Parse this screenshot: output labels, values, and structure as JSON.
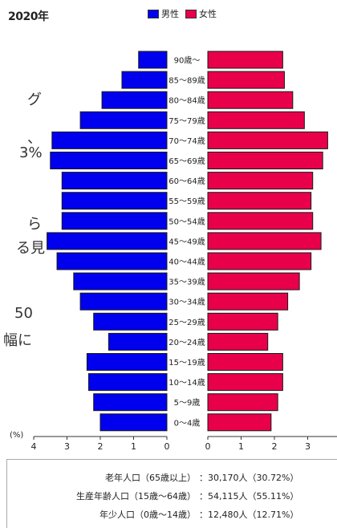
{
  "header": {
    "year": "2020年",
    "legend": [
      {
        "label": "男性",
        "color": "#0000ee"
      },
      {
        "label": "女性",
        "color": "#e8004a"
      }
    ]
  },
  "background_text": [
    {
      "text": "グ"
    },
    {
      "text": "、"
    },
    {
      "text": "3%"
    },
    {
      "text": "ら"
    },
    {
      "text": "る見"
    },
    {
      "text": "50"
    },
    {
      "text": "幅に"
    }
  ],
  "chart_data": {
    "type": "bar",
    "subtype": "population-pyramid",
    "categories": [
      "90歳～",
      "85～89歳",
      "80～84歳",
      "75～79歳",
      "70～74歳",
      "65～69歳",
      "60～64歳",
      "55～59歳",
      "50～54歳",
      "45～49歳",
      "40～44歳",
      "35～39歳",
      "30～34歳",
      "25～29歳",
      "20～24歳",
      "15～19歳",
      "10～14歳",
      "5～9歳",
      "0～4歳"
    ],
    "series": [
      {
        "name": "男性",
        "color": "#0000ee",
        "values": [
          0.85,
          1.35,
          1.95,
          2.6,
          3.45,
          3.5,
          3.15,
          3.15,
          3.15,
          3.6,
          3.3,
          2.8,
          2.6,
          2.2,
          1.75,
          2.4,
          2.35,
          2.2,
          2.0
        ]
      },
      {
        "name": "女性",
        "color": "#e8004a",
        "values": [
          2.25,
          2.3,
          2.55,
          2.9,
          3.6,
          3.45,
          3.15,
          3.1,
          3.15,
          3.4,
          3.1,
          2.75,
          2.4,
          2.1,
          1.8,
          2.25,
          2.25,
          2.1,
          1.9
        ]
      }
    ],
    "unit_label": "(%)",
    "x_ticks_left": [
      "4",
      "3",
      "2",
      "1",
      "0"
    ],
    "x_ticks_right": [
      "0",
      "1",
      "2",
      "3"
    ],
    "xlim": [
      0,
      4
    ],
    "grid": false
  },
  "summary": [
    {
      "label": "老年人口（65歳以上）",
      "value": "30,170人（30.72%）"
    },
    {
      "label": "生産年齢人口（15歳～64歳）",
      "value": "54,115人（55.11%）"
    },
    {
      "label": "年少人口（0歳～14歳）",
      "value": "12,480人（12.71%）"
    }
  ],
  "summary_separator": "："
}
